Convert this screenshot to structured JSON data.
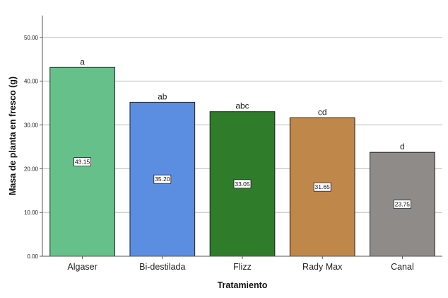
{
  "chart_data": {
    "type": "bar",
    "title": "",
    "xlabel": "Tratamiento",
    "ylabel": "Masa de planta en fresco (g)",
    "ylim": [
      0,
      55
    ],
    "yticks": [
      "0.00",
      "10.00",
      "20.00",
      "30.00",
      "40.00",
      "50.00"
    ],
    "grid": true,
    "categories": [
      "Algaser",
      "Bi-destilada",
      "Flizz",
      "Rady Max",
      "Canal"
    ],
    "values": [
      43.15,
      35.2,
      33.05,
      31.65,
      23.75
    ],
    "value_labels": [
      "43.15",
      "35.20",
      "33.05",
      "31.65",
      "23.75"
    ],
    "significance_letters": [
      "a",
      "ab",
      "abc",
      "cd",
      "d"
    ],
    "colors": [
      "#66c08a",
      "#5b8ee0",
      "#2f7d2b",
      "#c0874a",
      "#8e8b89"
    ]
  }
}
